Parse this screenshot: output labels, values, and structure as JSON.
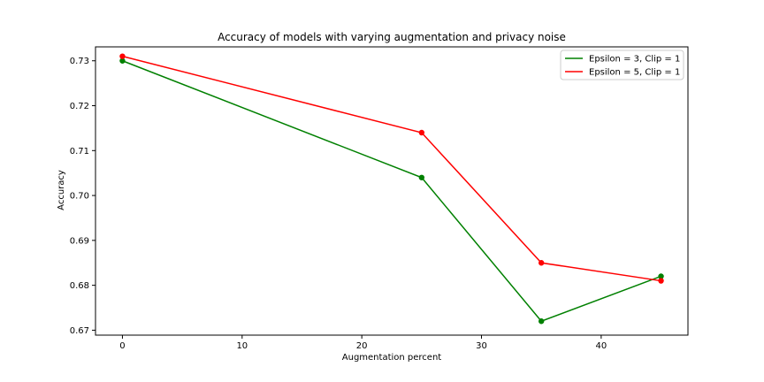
{
  "chart_data": {
    "type": "line",
    "title": "Accuracy of models with varying augmentation and privacy noise",
    "xlabel": "Augmentation percent",
    "ylabel": "Accuracy",
    "x": [
      0,
      25,
      35,
      45
    ],
    "xlim": [
      -2.25,
      47.25
    ],
    "ylim": [
      0.6689,
      0.7331
    ],
    "xticks": [
      0,
      10,
      20,
      30,
      40
    ],
    "yticks": [
      0.67,
      0.68,
      0.69,
      0.7,
      0.71,
      0.72,
      0.73
    ],
    "ytick_labels": [
      "0.67",
      "0.68",
      "0.69",
      "0.70",
      "0.71",
      "0.72",
      "0.73"
    ],
    "grid": false,
    "legend_position": "top-right",
    "series": [
      {
        "name": "Epsilon = 3, Clip = 1",
        "color": "#008000",
        "values": [
          0.73,
          0.704,
          0.672,
          0.682
        ]
      },
      {
        "name": "Epsilon = 5, Clip = 1",
        "color": "#ff0000",
        "values": [
          0.731,
          0.714,
          0.685,
          0.681
        ]
      }
    ]
  }
}
